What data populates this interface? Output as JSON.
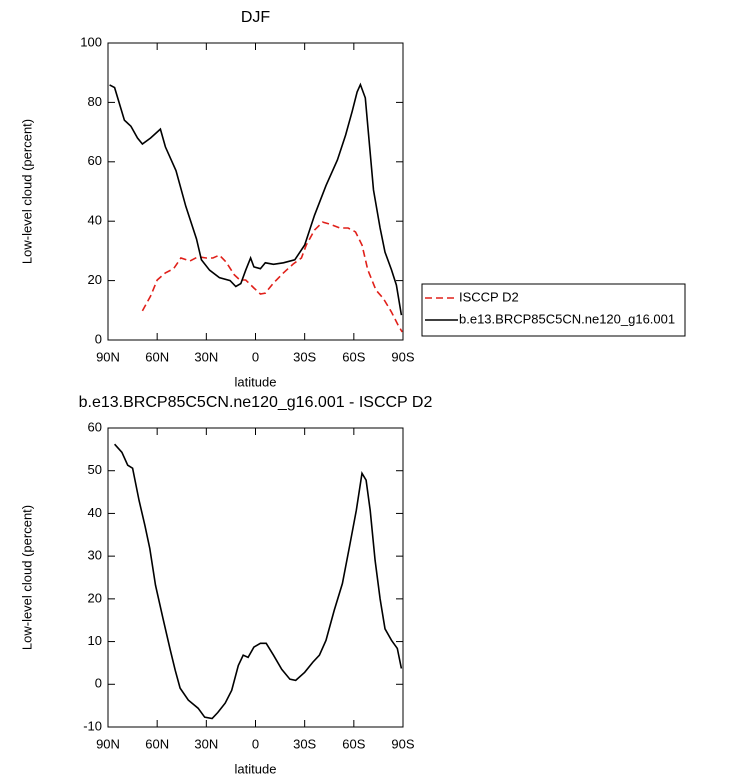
{
  "chart_data": [
    {
      "type": "line",
      "title": "DJF",
      "xlabel": "latitude",
      "ylabel": "Low-level cloud (percent)",
      "xlim": [
        90,
        -90
      ],
      "xticks": [
        {
          "value": 90,
          "label": "90N"
        },
        {
          "value": 60,
          "label": "60N"
        },
        {
          "value": 30,
          "label": "30N"
        },
        0,
        {
          "value": -30,
          "label": "30S"
        },
        {
          "value": -60,
          "label": "60S"
        },
        {
          "value": -90,
          "label": "90S"
        }
      ],
      "ylim": [
        0,
        100
      ],
      "yticks": [
        0,
        20,
        40,
        60,
        80,
        100
      ],
      "legend": "right",
      "series": [
        {
          "name": "ISCCP D2",
          "color": "#e0201a",
          "line_style": "dashed",
          "x": [
            69,
            64,
            60,
            55,
            50,
            45.5,
            40,
            35,
            30,
            26,
            22,
            18,
            13,
            9.5,
            6,
            1,
            -3,
            -6,
            -11,
            -17,
            -23,
            -28,
            -31,
            -36,
            -41,
            -45.5,
            -51.5,
            -56.5,
            -61,
            -65,
            -68.5,
            -73.5,
            -78,
            -83,
            -87,
            -89.5
          ],
          "values": [
            9.8,
            14.8,
            20.2,
            22.6,
            24,
            27.6,
            26.6,
            28,
            27.6,
            27.6,
            28.6,
            26.3,
            22,
            20.2,
            20.2,
            17.5,
            15.5,
            15.8,
            19.2,
            22.6,
            25.6,
            27.6,
            32,
            37,
            39.7,
            39,
            37.7,
            37.7,
            36.4,
            32,
            23.6,
            16.8,
            14,
            9.4,
            5,
            2.7
          ]
        },
        {
          "name": "b.e13.BRCP85C5CN.ne120_g16.001",
          "color": "#000000",
          "line_style": "solid",
          "x": [
            89,
            86,
            80,
            76,
            72,
            69,
            64,
            58,
            55,
            48.5,
            42.5,
            36,
            33,
            28,
            22,
            15.5,
            12,
            9,
            6,
            3,
            1,
            -3,
            -6,
            -11,
            -17,
            -24,
            -30,
            -36,
            -43,
            -50,
            -55,
            -59,
            -62,
            -64,
            -67,
            -69,
            -72,
            -76,
            -79,
            -83,
            -86,
            -89
          ],
          "values": [
            85.9,
            85,
            74,
            72,
            68,
            66,
            68,
            71,
            65,
            57,
            45,
            34,
            27,
            23.5,
            21,
            20,
            18,
            19,
            23.5,
            27.6,
            24.6,
            24,
            26,
            25.5,
            26,
            27,
            32,
            42,
            52,
            60.6,
            69,
            77,
            83.5,
            86,
            81.5,
            69,
            50.5,
            37.7,
            29.6,
            23.6,
            18.5,
            8.4
          ]
        }
      ]
    },
    {
      "type": "line",
      "title": "b.e13.BRCP85C5CN.ne120_g16.001 - ISCCP D2",
      "xlabel": "latitude",
      "ylabel": "Low-level cloud (percent)",
      "xlim": [
        90,
        -90
      ],
      "xticks": [
        {
          "value": 90,
          "label": "90N"
        },
        {
          "value": 60,
          "label": "60N"
        },
        {
          "value": 30,
          "label": "30N"
        },
        0,
        {
          "value": -30,
          "label": "30S"
        },
        {
          "value": -60,
          "label": "60S"
        },
        {
          "value": -90,
          "label": "90S"
        }
      ],
      "ylim": [
        -10,
        60
      ],
      "yticks": [
        -10,
        0,
        10,
        20,
        30,
        40,
        50,
        60
      ],
      "color": "#000000",
      "line_style": "solid",
      "x": [
        86,
        81.5,
        78,
        75,
        71,
        67.5,
        64.5,
        61,
        56.5,
        52,
        49,
        46,
        41,
        35,
        31,
        26.5,
        23,
        18.5,
        14.5,
        10.5,
        7.5,
        4.5,
        1,
        -3,
        -6.5,
        -11,
        -16,
        -21,
        -24.5,
        -30,
        -35,
        -39,
        -43,
        -48,
        -53,
        -57.5,
        -61.5,
        -65,
        -67.5,
        -70,
        -73,
        -76,
        -79,
        -83,
        -86.5,
        -89
      ],
      "values": [
        56.2,
        54.3,
        51.3,
        50.6,
        43,
        37.2,
        31.8,
        23.2,
        15.5,
        8,
        3.3,
        -0.9,
        -3.7,
        -5.6,
        -7.7,
        -8,
        -6.6,
        -4.4,
        -1.4,
        4.4,
        6.8,
        6.3,
        8.7,
        9.6,
        9.6,
        6.8,
        3.5,
        1.2,
        0.9,
        2.8,
        5.2,
        6.8,
        10.3,
        17.3,
        23.6,
        32.5,
        40.7,
        49.4,
        47.8,
        40.7,
        29,
        20,
        13,
        10.3,
        8.4,
        3.7
      ]
    }
  ]
}
